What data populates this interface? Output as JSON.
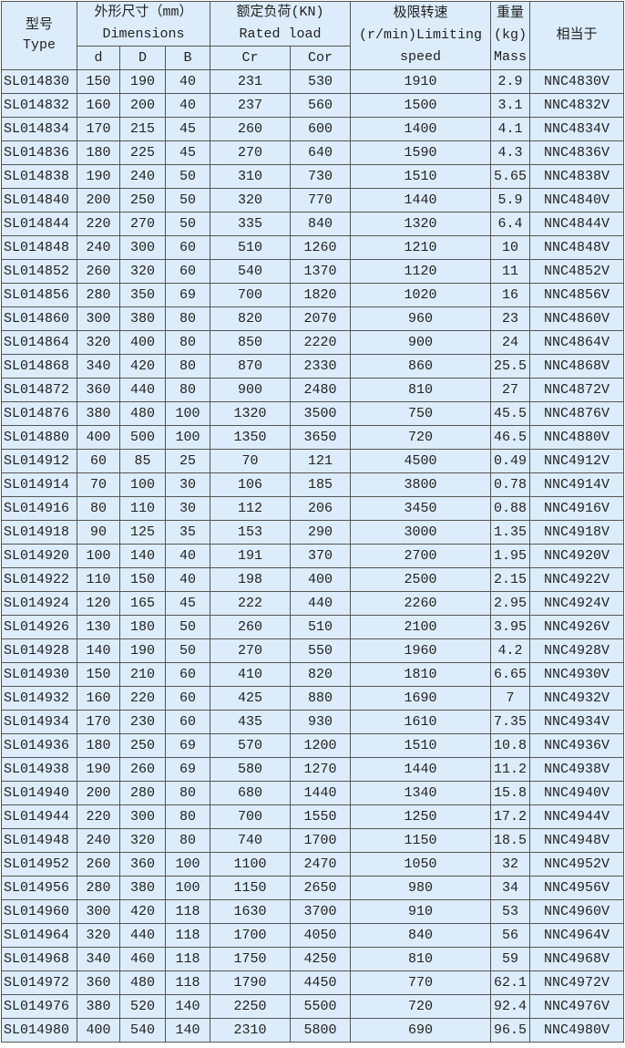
{
  "header": {
    "type": "型号\nType",
    "dimensions_cn": "外形尺寸（mm）",
    "dimensions_en": "Dimensions",
    "load_cn": "额定负荷(KN)",
    "load_en": "Rated load",
    "speed_cn": "极限转速",
    "speed_unit": "(r/min)Limiting",
    "speed_en": "speed",
    "mass_cn": "重量",
    "mass_unit": "(kg)",
    "mass_en": "Mass",
    "equiv": "相当于",
    "d": "d",
    "D": "D",
    "B": "B",
    "cr": "Cr",
    "cor": "Cor"
  },
  "rows": [
    [
      "SL014830",
      "150",
      "190",
      "40",
      "231",
      "530",
      "1910",
      "2.9",
      "NNC4830V"
    ],
    [
      "SL014832",
      "160",
      "200",
      "40",
      "237",
      "560",
      "1500",
      "3.1",
      "NNC4832V"
    ],
    [
      "SL014834",
      "170",
      "215",
      "45",
      "260",
      "600",
      "1400",
      "4.1",
      "NNC4834V"
    ],
    [
      "SL014836",
      "180",
      "225",
      "45",
      "270",
      "640",
      "1590",
      "4.3",
      "NNC4836V"
    ],
    [
      "SL014838",
      "190",
      "240",
      "50",
      "310",
      "730",
      "1510",
      "5.65",
      "NNC4838V"
    ],
    [
      "SL014840",
      "200",
      "250",
      "50",
      "320",
      "770",
      "1440",
      "5.9",
      "NNC4840V"
    ],
    [
      "SL014844",
      "220",
      "270",
      "50",
      "335",
      "840",
      "1320",
      "6.4",
      "NNC4844V"
    ],
    [
      "SL014848",
      "240",
      "300",
      "60",
      "510",
      "1260",
      "1210",
      "10",
      "NNC4848V"
    ],
    [
      "SL014852",
      "260",
      "320",
      "60",
      "540",
      "1370",
      "1120",
      "11",
      "NNC4852V"
    ],
    [
      "SL014856",
      "280",
      "350",
      "69",
      "700",
      "1820",
      "1020",
      "16",
      "NNC4856V"
    ],
    [
      "SL014860",
      "300",
      "380",
      "80",
      "820",
      "2070",
      "960",
      "23",
      "NNC4860V"
    ],
    [
      "SL014864",
      "320",
      "400",
      "80",
      "850",
      "2220",
      "900",
      "24",
      "NNC4864V"
    ],
    [
      "SL014868",
      "340",
      "420",
      "80",
      "870",
      "2330",
      "860",
      "25.5",
      "NNC4868V"
    ],
    [
      "SL014872",
      "360",
      "440",
      "80",
      "900",
      "2480",
      "810",
      "27",
      "NNC4872V"
    ],
    [
      "SL014876",
      "380",
      "480",
      "100",
      "1320",
      "3500",
      "750",
      "45.5",
      "NNC4876V"
    ],
    [
      "SL014880",
      "400",
      "500",
      "100",
      "1350",
      "3650",
      "720",
      "46.5",
      "NNC4880V"
    ],
    [
      "SL014912",
      "60",
      "85",
      "25",
      "70",
      "121",
      "4500",
      "0.49",
      "NNC4912V"
    ],
    [
      "SL014914",
      "70",
      "100",
      "30",
      "106",
      "185",
      "3800",
      "0.78",
      "NNC4914V"
    ],
    [
      "SL014916",
      "80",
      "110",
      "30",
      "112",
      "206",
      "3450",
      "0.88",
      "NNC4916V"
    ],
    [
      "SL014918",
      "90",
      "125",
      "35",
      "153",
      "290",
      "3000",
      "1.35",
      "NNC4918V"
    ],
    [
      "SL014920",
      "100",
      "140",
      "40",
      "191",
      "370",
      "2700",
      "1.95",
      "NNC4920V"
    ],
    [
      "SL014922",
      "110",
      "150",
      "40",
      "198",
      "400",
      "2500",
      "2.15",
      "NNC4922V"
    ],
    [
      "SL014924",
      "120",
      "165",
      "45",
      "222",
      "440",
      "2260",
      "2.95",
      "NNC4924V"
    ],
    [
      "SL014926",
      "130",
      "180",
      "50",
      "260",
      "510",
      "2100",
      "3.95",
      "NNC4926V"
    ],
    [
      "SL014928",
      "140",
      "190",
      "50",
      "270",
      "550",
      "1960",
      "4.2",
      "NNC4928V"
    ],
    [
      "SL014930",
      "150",
      "210",
      "60",
      "410",
      "820",
      "1810",
      "6.65",
      "NNC4930V"
    ],
    [
      "SL014932",
      "160",
      "220",
      "60",
      "425",
      "880",
      "1690",
      "7",
      "NNC4932V"
    ],
    [
      "SL014934",
      "170",
      "230",
      "60",
      "435",
      "930",
      "1610",
      "7.35",
      "NNC4934V"
    ],
    [
      "SL014936",
      "180",
      "250",
      "69",
      "570",
      "1200",
      "1510",
      "10.8",
      "NNC4936V"
    ],
    [
      "SL014938",
      "190",
      "260",
      "69",
      "580",
      "1270",
      "1440",
      "11.2",
      "NNC4938V"
    ],
    [
      "SL014940",
      "200",
      "280",
      "80",
      "680",
      "1440",
      "1340",
      "15.8",
      "NNC4940V"
    ],
    [
      "SL014944",
      "220",
      "300",
      "80",
      "700",
      "1550",
      "1250",
      "17.2",
      "NNC4944V"
    ],
    [
      "SL014948",
      "240",
      "320",
      "80",
      "740",
      "1700",
      "1150",
      "18.5",
      "NNC4948V"
    ],
    [
      "SL014952",
      "260",
      "360",
      "100",
      "1100",
      "2470",
      "1050",
      "32",
      "NNC4952V"
    ],
    [
      "SL014956",
      "280",
      "380",
      "100",
      "1150",
      "2650",
      "980",
      "34",
      "NNC4956V"
    ],
    [
      "SL014960",
      "300",
      "420",
      "118",
      "1630",
      "3700",
      "910",
      "53",
      "NNC4960V"
    ],
    [
      "SL014964",
      "320",
      "440",
      "118",
      "1700",
      "4050",
      "840",
      "56",
      "NNC4964V"
    ],
    [
      "SL014968",
      "340",
      "460",
      "118",
      "1750",
      "4250",
      "810",
      "59",
      "NNC4968V"
    ],
    [
      "SL014972",
      "360",
      "480",
      "118",
      "1790",
      "4450",
      "770",
      "62.1",
      "NNC4972V"
    ],
    [
      "SL014976",
      "380",
      "520",
      "140",
      "2250",
      "5500",
      "720",
      "92.4",
      "NNC4976V"
    ],
    [
      "SL014980",
      "400",
      "540",
      "140",
      "2310",
      "5800",
      "690",
      "96.5",
      "NNC4980V"
    ]
  ]
}
